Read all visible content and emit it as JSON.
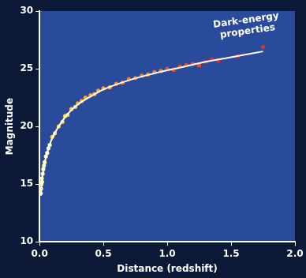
{
  "chart_data": {
    "type": "scatter",
    "x_label": "Distance (redshift)",
    "y_label": "Magnitude",
    "annotation": "Dark-energy properties",
    "xlim": [
      0,
      2.0
    ],
    "xticks": [
      {
        "value": 0,
        "label": "0.0"
      },
      {
        "value": 0.5,
        "label": "0.5"
      },
      {
        "value": 1.0,
        "label": "1.0"
      },
      {
        "value": 1.5,
        "label": "1.5"
      },
      {
        "value": 2.0,
        "label": "2.0"
      }
    ],
    "ylim": [
      10,
      30
    ],
    "yticks": [
      10,
      15,
      20,
      25,
      30
    ],
    "grid": false,
    "series": [
      {
        "type": "scatter",
        "marker": "circle",
        "x": [
          0.01,
          0.012,
          0.015,
          0.018,
          0.02,
          0.025,
          0.03,
          0.035,
          0.04,
          0.05,
          0.06,
          0.07,
          0.08,
          0.1,
          0.12,
          0.15,
          0.18,
          0.2,
          0.22,
          0.25,
          0.28,
          0.3,
          0.33,
          0.36,
          0.4,
          0.43,
          0.46,
          0.5,
          0.55,
          0.6,
          0.65,
          0.7,
          0.75,
          0.8,
          0.85,
          0.9,
          0.95,
          1.0,
          1.05,
          1.1,
          1.15,
          1.2,
          1.25,
          1.3,
          1.35,
          1.4,
          1.55,
          1.75
        ],
        "values": [
          14.2,
          14.6,
          15.0,
          15.5,
          15.2,
          15.9,
          16.3,
          16.6,
          16.9,
          17.4,
          17.7,
          18.1,
          18.4,
          19.1,
          19.4,
          20.0,
          20.4,
          20.9,
          21.0,
          21.5,
          21.7,
          22.0,
          22.2,
          22.5,
          22.7,
          22.8,
          23.1,
          23.3,
          23.4,
          23.7,
          23.8,
          24.1,
          24.2,
          24.4,
          24.5,
          24.7,
          24.8,
          25.0,
          24.9,
          25.2,
          25.3,
          25.4,
          25.3,
          25.6,
          25.8,
          25.7,
          26.1,
          26.9
        ],
        "colors": [
          "#ffff80",
          "#ffff80",
          "#ffff80",
          "#ffff80",
          "#ffff80",
          "#ffff80",
          "#ffff80",
          "#ffff80",
          "#ffff80",
          "#ffff80",
          "#ffff80",
          "#ffff80",
          "#ffff80",
          "#ffd21f",
          "#ffd21f",
          "#ffd21f",
          "#ffd21f",
          "#ffd21f",
          "#ffd21f",
          "#ffd21f",
          "#ffd21f",
          "#ffa01a",
          "#ffa01a",
          "#ffa01a",
          "#ffa01a",
          "#ffa01a",
          "#ffa01a",
          "#ffa01a",
          "#ffa01a",
          "#ff7a1a",
          "#ff7a1a",
          "#ff7a1a",
          "#ff7a1a",
          "#ff7a1a",
          "#ff7a1a",
          "#ff7a1a",
          "#ff7a1a",
          "#f04a1c",
          "#f04a1c",
          "#f04a1c",
          "#f04a1c",
          "#f04a1c",
          "#f04a1c",
          "#e0301c",
          "#e0301c",
          "#e0301c",
          "#e0301c",
          "#e0301c"
        ]
      },
      {
        "type": "line",
        "line_style": "solid",
        "color": "#ffffff",
        "x": [
          0.01,
          0.02,
          0.03,
          0.05,
          0.1,
          0.2,
          0.3,
          0.4,
          0.5,
          0.7,
          0.9,
          1.1,
          1.3,
          1.5,
          1.75
        ],
        "values": [
          14.0,
          15.3,
          16.2,
          17.3,
          19.0,
          20.8,
          21.9,
          22.6,
          23.2,
          24.0,
          24.6,
          25.1,
          25.6,
          26.0,
          26.5
        ]
      }
    ]
  }
}
